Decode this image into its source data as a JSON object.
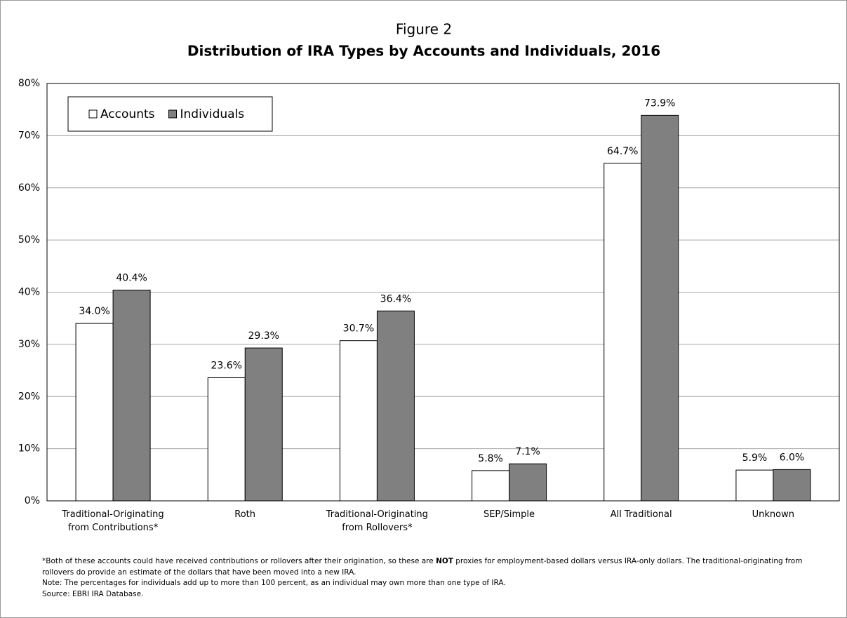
{
  "chart_data": {
    "type": "bar",
    "title": "Figure 2",
    "subtitle": "Distribution of IRA Types by Accounts and Individuals, 2016",
    "categories": [
      "Traditional-Originating\nfrom Contributions*",
      "Roth",
      "Traditional-Originating\nfrom Rollovers*",
      "SEP/Simple",
      "All Traditional",
      "Unknown"
    ],
    "series": [
      {
        "name": "Accounts",
        "color": "#ffffff",
        "values": [
          34.0,
          23.6,
          30.7,
          5.8,
          64.7,
          5.9
        ],
        "value_labels": [
          "34.0%",
          "23.6%",
          "30.7%",
          "5.8%",
          "64.7%",
          "5.9%"
        ]
      },
      {
        "name": "Individuals",
        "color": "#808080",
        "values": [
          40.4,
          29.3,
          36.4,
          7.1,
          73.9,
          6.0
        ],
        "value_labels": [
          "40.4%",
          "29.3%",
          "36.4%",
          "7.1%",
          "73.9%",
          "6.0%"
        ]
      }
    ],
    "ylim": [
      0,
      80
    ],
    "yticks": [
      {
        "value": 0,
        "label": "0%"
      },
      {
        "value": 10,
        "label": "10%"
      },
      {
        "value": 20,
        "label": "20%"
      },
      {
        "value": 30,
        "label": "30%"
      },
      {
        "value": 40,
        "label": "40%"
      },
      {
        "value": 50,
        "label": "50%"
      },
      {
        "value": 60,
        "label": "60%"
      },
      {
        "value": 70,
        "label": "70%"
      },
      {
        "value": 80,
        "label": "80%"
      }
    ],
    "grid": true,
    "legend": "top-left",
    "footnote": [
      "*Both of these accounts could have received contributions or rollovers after their origination, so these are ",
      "NOT",
      " proxies for employment-based dollars versus IRA-only dollars.  The traditional-originating from rollovers do provide an estimate of the dollars that have been moved into a new IRA."
    ],
    "note": "Note: The percentages for individuals add up to more than 100 percent, as an individual may own more than one type of IRA.",
    "source": "Source: EBRI IRA Database."
  }
}
